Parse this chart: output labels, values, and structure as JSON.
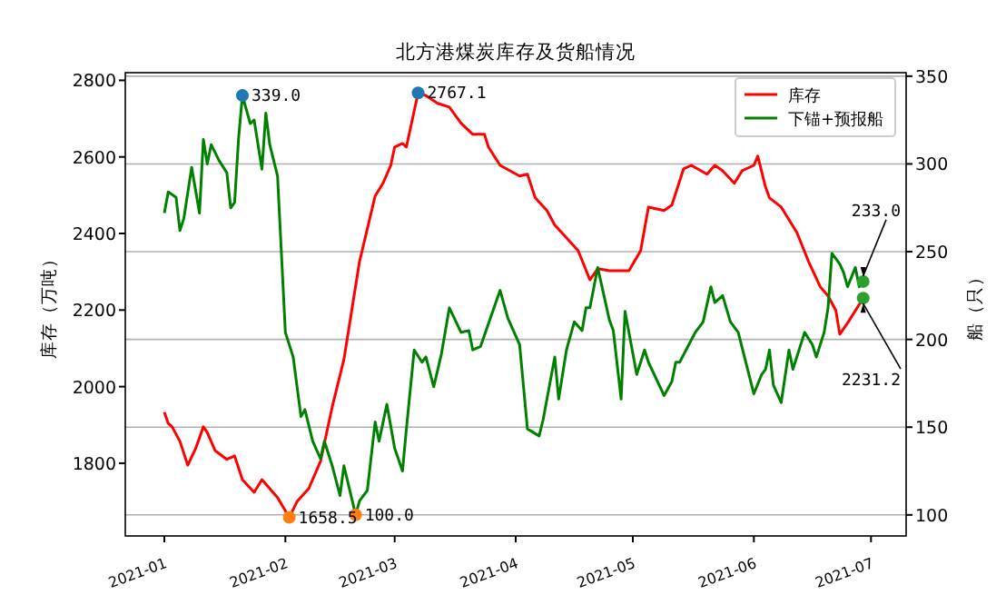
{
  "chart_data": {
    "type": "line",
    "title": "北方港煤炭库存及货船情况",
    "ylabel": "库存（万吨）",
    "y2label": "船（只）",
    "xlim": [
      "2020-12-22",
      "2021-07-10"
    ],
    "xticks": [
      "2021-01",
      "2021-02",
      "2021-03",
      "2021-04",
      "2021-05",
      "2021-06",
      "2021-07"
    ],
    "ylim": [
      1610,
      2820
    ],
    "yticks": [
      1800,
      2000,
      2200,
      2400,
      2600,
      2800
    ],
    "y2lim": [
      88,
      352
    ],
    "y2ticks": [
      100,
      150,
      200,
      250,
      300,
      350
    ],
    "grid": "y2",
    "legend": "top right",
    "series": [
      {
        "name": "库存",
        "color": "#ff0000",
        "x": [
          "2021-01-01",
          "2021-01-02",
          "2021-01-03",
          "2021-01-05",
          "2021-01-07",
          "2021-01-09",
          "2021-01-11",
          "2021-01-12",
          "2021-01-14",
          "2021-01-17",
          "2021-01-19",
          "2021-01-21",
          "2021-01-24",
          "2021-01-26",
          "2021-01-30",
          "2021-02-02",
          "2021-02-04",
          "2021-02-07",
          "2021-02-10",
          "2021-02-13",
          "2021-02-16",
          "2021-02-18",
          "2021-02-20",
          "2021-02-24",
          "2021-02-26",
          "2021-02-28",
          "2021-03-01",
          "2021-03-03",
          "2021-03-04",
          "2021-03-07",
          "2021-03-09",
          "2021-03-12",
          "2021-03-15",
          "2021-03-18",
          "2021-03-21",
          "2021-03-24",
          "2021-03-25",
          "2021-03-28",
          "2021-04-02",
          "2021-04-04",
          "2021-04-06",
          "2021-04-09",
          "2021-04-11",
          "2021-04-14",
          "2021-04-17",
          "2021-04-20",
          "2021-04-22",
          "2021-04-25",
          "2021-04-28",
          "2021-04-30",
          "2021-05-03",
          "2021-05-05",
          "2021-05-09",
          "2021-05-11",
          "2021-05-14",
          "2021-05-16",
          "2021-05-20",
          "2021-05-22",
          "2021-05-24",
          "2021-05-27",
          "2021-05-29",
          "2021-06-01",
          "2021-06-02",
          "2021-06-04",
          "2021-06-05",
          "2021-06-08",
          "2021-06-12",
          "2021-06-15",
          "2021-06-18",
          "2021-06-20",
          "2021-06-22",
          "2021-06-23",
          "2021-06-25",
          "2021-06-29"
        ],
        "values": [
          1933,
          1904,
          1895,
          1857,
          1795,
          1838,
          1895,
          1880,
          1833,
          1810,
          1819,
          1757,
          1724,
          1757,
          1710,
          1658.5,
          1700,
          1734,
          1805,
          1947,
          2071,
          2199,
          2327,
          2498,
          2531,
          2578,
          2626,
          2635,
          2626,
          2767.1,
          2760,
          2740,
          2730,
          2688,
          2659,
          2659,
          2626,
          2578,
          2550,
          2555,
          2493,
          2460,
          2422,
          2389,
          2355,
          2279,
          2308,
          2303,
          2303,
          2303,
          2355,
          2469,
          2460,
          2474,
          2569,
          2578,
          2555,
          2578,
          2564,
          2531,
          2564,
          2578,
          2602,
          2521,
          2493,
          2469,
          2403,
          2327,
          2261,
          2237,
          2199,
          2137,
          2166,
          2231.2
        ]
      },
      {
        "name": "下锚+预报船",
        "color": "#008000",
        "axis": "y2",
        "x": [
          "2021-01-01",
          "2021-01-02",
          "2021-01-04",
          "2021-01-05",
          "2021-01-06",
          "2021-01-08",
          "2021-01-10",
          "2021-01-11",
          "2021-01-12",
          "2021-01-13",
          "2021-01-15",
          "2021-01-17",
          "2021-01-18",
          "2021-01-19",
          "2021-01-20",
          "2021-01-21",
          "2021-01-23",
          "2021-01-24",
          "2021-01-26",
          "2021-01-27",
          "2021-01-28",
          "2021-01-30",
          "2021-02-01",
          "2021-02-03",
          "2021-02-05",
          "2021-02-06",
          "2021-02-08",
          "2021-02-10",
          "2021-02-11",
          "2021-02-13",
          "2021-02-15",
          "2021-02-16",
          "2021-02-19",
          "2021-02-20",
          "2021-02-22",
          "2021-02-24",
          "2021-02-25",
          "2021-02-27",
          "2021-03-01",
          "2021-03-03",
          "2021-03-04",
          "2021-03-06",
          "2021-03-08",
          "2021-03-09",
          "2021-03-11",
          "2021-03-13",
          "2021-03-15",
          "2021-03-18",
          "2021-03-20",
          "2021-03-21",
          "2021-03-23",
          "2021-03-28",
          "2021-03-30",
          "2021-04-02",
          "2021-04-04",
          "2021-04-07",
          "2021-04-08",
          "2021-04-11",
          "2021-04-12",
          "2021-04-14",
          "2021-04-16",
          "2021-04-18",
          "2021-04-19",
          "2021-04-20",
          "2021-04-22",
          "2021-04-25",
          "2021-04-26",
          "2021-04-28",
          "2021-04-29",
          "2021-05-02",
          "2021-05-04",
          "2021-05-05",
          "2021-05-09",
          "2021-05-11",
          "2021-05-12",
          "2021-05-13",
          "2021-05-17",
          "2021-05-19",
          "2021-05-21",
          "2021-05-22",
          "2021-05-24",
          "2021-05-26",
          "2021-05-28",
          "2021-06-01",
          "2021-06-03",
          "2021-06-04",
          "2021-06-05",
          "2021-06-06",
          "2021-06-08",
          "2021-06-10",
          "2021-06-11",
          "2021-06-14",
          "2021-06-16",
          "2021-06-17",
          "2021-06-19",
          "2021-06-20",
          "2021-06-21",
          "2021-06-23",
          "2021-06-24",
          "2021-06-25",
          "2021-06-27",
          "2021-06-28",
          "2021-06-29"
        ],
        "values": [
          272,
          284,
          281,
          262,
          269,
          298,
          272,
          314,
          300,
          311,
          302,
          295,
          275,
          278,
          314,
          339,
          323,
          325,
          297,
          329,
          311,
          293,
          204,
          190,
          156,
          160,
          142,
          132,
          142,
          128,
          111,
          128,
          100,
          108,
          114,
          153,
          142,
          163,
          138,
          125,
          149,
          194,
          187,
          190,
          173,
          192,
          218,
          204,
          205,
          194,
          196,
          228,
          212,
          197,
          149,
          145,
          154,
          190,
          166,
          194,
          210,
          205,
          218,
          218,
          241,
          211,
          205,
          166,
          216,
          180,
          194,
          187,
          168,
          176,
          187,
          187,
          204,
          210,
          230,
          221,
          225,
          210,
          204,
          169,
          180,
          183,
          194,
          174,
          164,
          194,
          183,
          204,
          197,
          190,
          204,
          218,
          249,
          243,
          238,
          230,
          241,
          230,
          233
        ]
      },
      {
        "type": "scatter",
        "color": "#1f77b4",
        "x": [
          "2021-03-07"
        ],
        "values": [
          2767.1
        ]
      },
      {
        "type": "scatter",
        "color": "#1f77b4",
        "axis": "y2",
        "x": [
          "2021-01-21"
        ],
        "values": [
          339
        ]
      },
      {
        "type": "scatter",
        "color": "#ff7f0e",
        "x": [
          "2021-02-02"
        ],
        "values": [
          1658.5
        ]
      },
      {
        "type": "scatter",
        "color": "#ff7f0e",
        "axis": "y2",
        "x": [
          "2021-02-19"
        ],
        "values": [
          100
        ]
      },
      {
        "type": "scatter",
        "color": "#2ca02c",
        "x": [
          "2021-06-29"
        ],
        "values": [
          2231.2
        ]
      },
      {
        "type": "scatter",
        "color": "#2ca02c",
        "axis": "y2",
        "x": [
          "2021-06-29"
        ],
        "values": [
          233
        ]
      }
    ],
    "annotations": [
      "2767.1",
      "339.0",
      "1658.5",
      "100.0",
      "2231.2",
      "233.0"
    ]
  }
}
